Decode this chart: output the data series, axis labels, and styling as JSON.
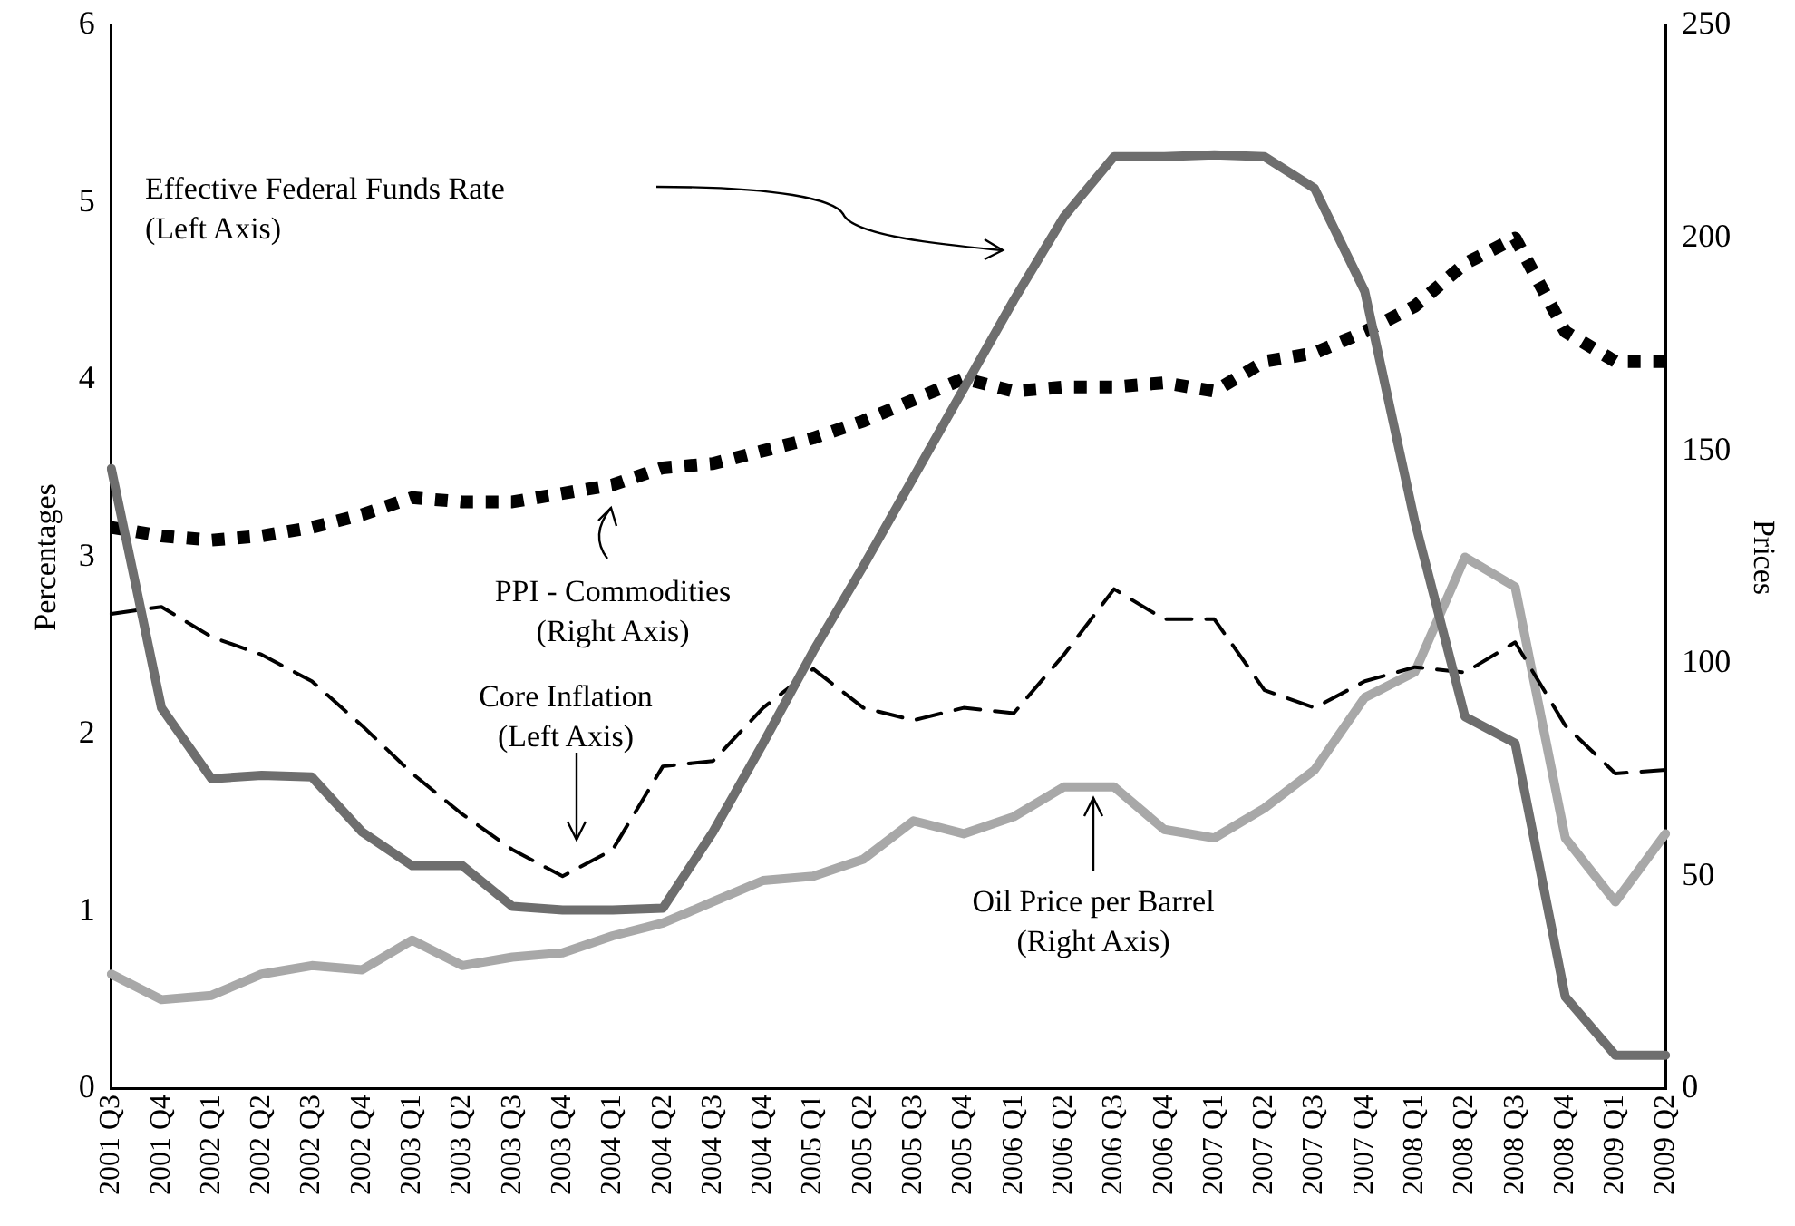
{
  "chart_data": {
    "type": "line",
    "ylabel": "Percentages",
    "y2label": "Prices",
    "categories": [
      "2001 Q3",
      "2001 Q4",
      "2002 Q1",
      "2002 Q2",
      "2002 Q3",
      "2002 Q4",
      "2003 Q1",
      "2003 Q2",
      "2003 Q3",
      "2003 Q4",
      "2004 Q1",
      "2004 Q2",
      "2004 Q3",
      "2004 Q4",
      "2005 Q1",
      "2005 Q2",
      "2005 Q3",
      "2005 Q4",
      "2006 Q1",
      "2006 Q2",
      "2006 Q3",
      "2006 Q4",
      "2007 Q1",
      "2007 Q2",
      "2007 Q3",
      "2007 Q4",
      "2008 Q1",
      "2008 Q2",
      "2008 Q3",
      "2008 Q4",
      "2009 Q1",
      "2009 Q2"
    ],
    "ylim": [
      0,
      6
    ],
    "yticks": [
      0,
      1,
      2,
      3,
      4,
      5,
      6
    ],
    "y2lim": [
      0,
      250
    ],
    "y2ticks": [
      0,
      50,
      100,
      150,
      200,
      250
    ],
    "grid": false,
    "legend": false,
    "marker": "none",
    "series": [
      {
        "color": "#6e6e6e",
        "line_style": "solid",
        "values": [
          3.5,
          2.15,
          1.75,
          1.77,
          1.76,
          1.45,
          1.26,
          1.26,
          1.03,
          1.01,
          1.01,
          1.02,
          1.45,
          1.95,
          2.47,
          2.95,
          3.45,
          3.95,
          4.45,
          4.92,
          5.26,
          5.26,
          5.27,
          5.26,
          5.08,
          4.5,
          3.2,
          2.1,
          1.95,
          0.52,
          0.19,
          0.19
        ]
      },
      {
        "color": "#000000",
        "line_style": "dashed",
        "values": [
          2.68,
          2.72,
          2.55,
          2.45,
          2.3,
          2.05,
          1.78,
          1.55,
          1.35,
          1.2,
          1.35,
          1.82,
          1.85,
          2.15,
          2.37,
          2.15,
          2.08,
          2.15,
          2.12,
          2.45,
          2.82,
          2.65,
          2.65,
          2.25,
          2.15,
          2.3,
          2.38,
          2.35,
          2.52,
          2.05,
          1.78,
          1.8
        ]
      },
      {
        "color": "#000000",
        "line_style": "dotted",
        "axis": "y2",
        "values": [
          132,
          130,
          129,
          130,
          132,
          135,
          139,
          138,
          138,
          140,
          142,
          146,
          147,
          150,
          153,
          157,
          162,
          167,
          164,
          165,
          165,
          166,
          164,
          171,
          173,
          178,
          184,
          194,
          200,
          178,
          171,
          171
        ]
      },
      {
        "color": "#a8a8a8",
        "line_style": "solid",
        "axis": "y2",
        "values": [
          27,
          21,
          22,
          27,
          29,
          28,
          35,
          29,
          31,
          32,
          36,
          39,
          44,
          49,
          50,
          54,
          63,
          60,
          64,
          71,
          71,
          61,
          59,
          66,
          75,
          92,
          98,
          125,
          118,
          59,
          44,
          60
        ]
      }
    ],
    "annotations": [
      "Effective Federal Funds Rate\n(Left Axis)",
      "Core Inflation\n(Left Axis)",
      "PPI - Commodities\n(Right Axis)",
      "Oil Price per Barrel\n(Right Axis)"
    ]
  }
}
